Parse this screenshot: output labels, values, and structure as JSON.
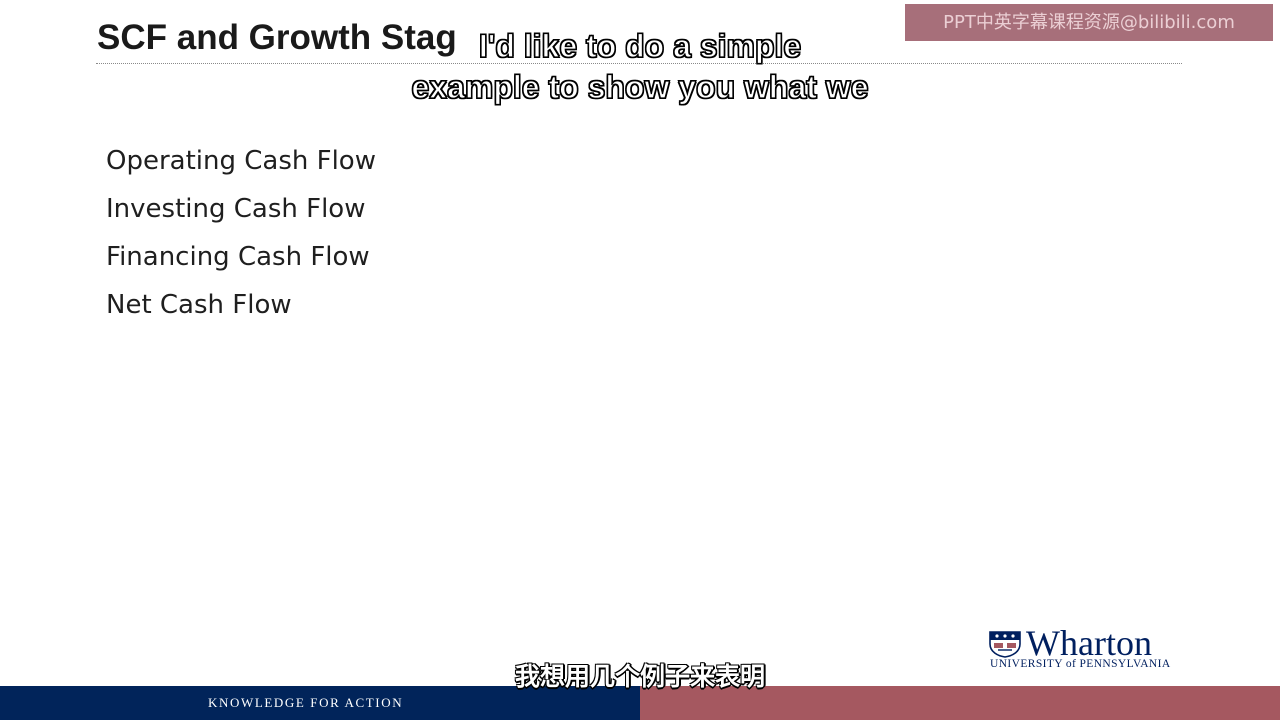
{
  "slide": {
    "title": "SCF and Growth Stag",
    "bullets": [
      "Operating Cash Flow",
      "Investing Cash Flow",
      "Financing Cash Flow",
      "Net Cash Flow"
    ]
  },
  "subtitles": {
    "english_line1": "I'd like to do a simple",
    "english_line2": "example to show you what we",
    "chinese": "我想用几个例子来表明"
  },
  "watermark": {
    "text": "PPT中英字幕课程资源@bilibili.com"
  },
  "logo": {
    "wordmark": "Wharton",
    "subtitle": "UNIVERSITY of PENNSYLVANIA",
    "icon": "penn-shield-icon"
  },
  "footer": {
    "tagline": "KNOWLEDGE FOR ACTION"
  },
  "colors": {
    "footer_blue": "#01245a",
    "footer_red": "#a55860",
    "logo_navy": "#001f5f",
    "watermark_bg": "#9c5c68"
  }
}
